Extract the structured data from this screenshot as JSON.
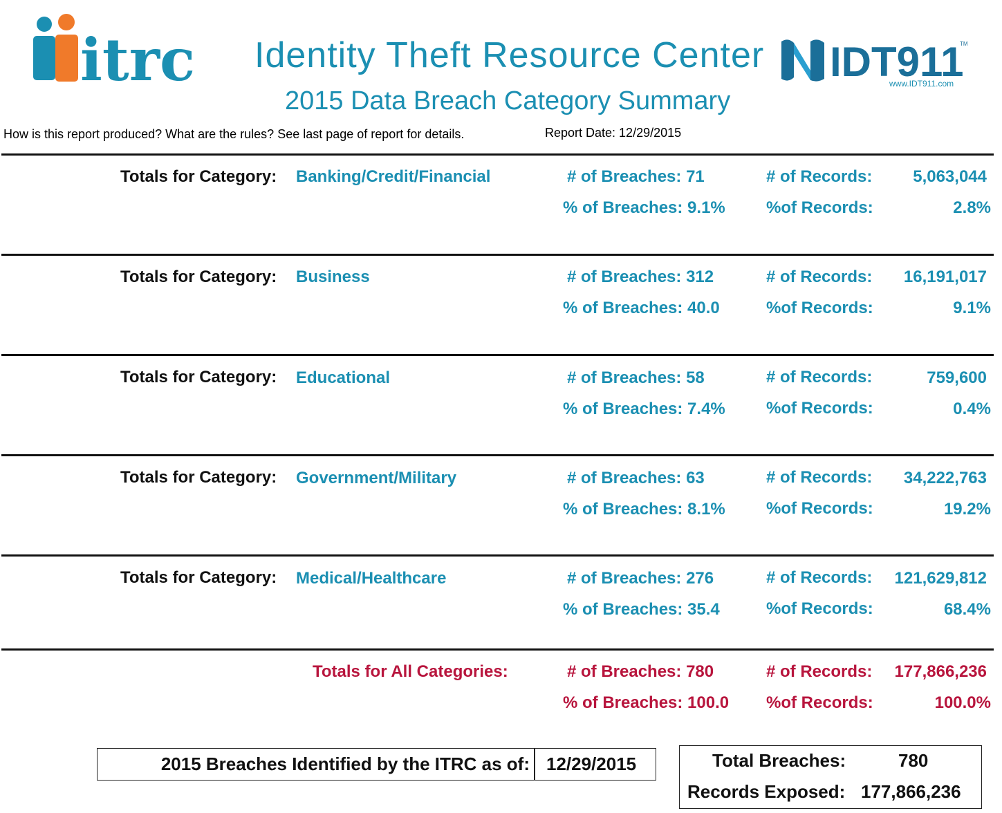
{
  "header": {
    "logo_text": "itrc",
    "title": "Identity Theft Resource Center",
    "subtitle": "2015 Data Breach Category Summary",
    "partner_logo_text": "IDT911",
    "partner_logo_trademark": "TM",
    "partner_url": "www.IDT911.com",
    "info_text": "How is this report produced?  What are the rules?  See last page of report for details.",
    "report_date": "Report Date: 12/29/2015"
  },
  "colors": {
    "accent": "#1b8fb2",
    "totals": "#b8153d",
    "logo_orange": "#f07a2a"
  },
  "category_label": "Totals for Category:",
  "categories": [
    {
      "name": "Banking/Credit/Financial",
      "breaches_count": "# of Breaches: 71",
      "breaches_pct": "% of Breaches: 9.1%",
      "records_label": "# of Records:",
      "records": "5,063,044",
      "records_pct_label": "%of Records:",
      "records_pct": "2.8%"
    },
    {
      "name": "Business",
      "breaches_count": "# of Breaches: 312",
      "breaches_pct": "% of Breaches: 40.0",
      "records_label": "# of Records:",
      "records": "16,191,017",
      "records_pct_label": "%of Records:",
      "records_pct": "9.1%"
    },
    {
      "name": "Educational",
      "breaches_count": "# of Breaches: 58",
      "breaches_pct": "% of Breaches: 7.4%",
      "records_label": "# of Records:",
      "records": "759,600",
      "records_pct_label": "%of Records:",
      "records_pct": "0.4%"
    },
    {
      "name": "Government/Military",
      "breaches_count": "# of Breaches: 63",
      "breaches_pct": "% of Breaches: 8.1%",
      "records_label": "# of Records:",
      "records": "34,222,763",
      "records_pct_label": "%of Records:",
      "records_pct": "19.2%"
    },
    {
      "name": "Medical/Healthcare",
      "breaches_count": "# of Breaches: 276",
      "breaches_pct": "% of Breaches: 35.4",
      "records_label": "# of Records:",
      "records": "121,629,812",
      "records_pct_label": "%of Records:",
      "records_pct": "68.4%"
    }
  ],
  "totals": {
    "label": "Totals for All Categories:",
    "breaches_count": "# of Breaches: 780",
    "breaches_pct": "% of Breaches: 100.0",
    "records_label": "# of Records:",
    "records": "177,866,236",
    "records_pct_label": "%of Records:",
    "records_pct": "100.0%"
  },
  "footer": {
    "identified_label": "2015 Breaches Identified by the ITRC as of:",
    "identified_date": "12/29/2015",
    "total_breaches_label": "Total Breaches:",
    "total_breaches": "780",
    "records_exposed_label": "Records Exposed:",
    "records_exposed": "177,866,236"
  }
}
